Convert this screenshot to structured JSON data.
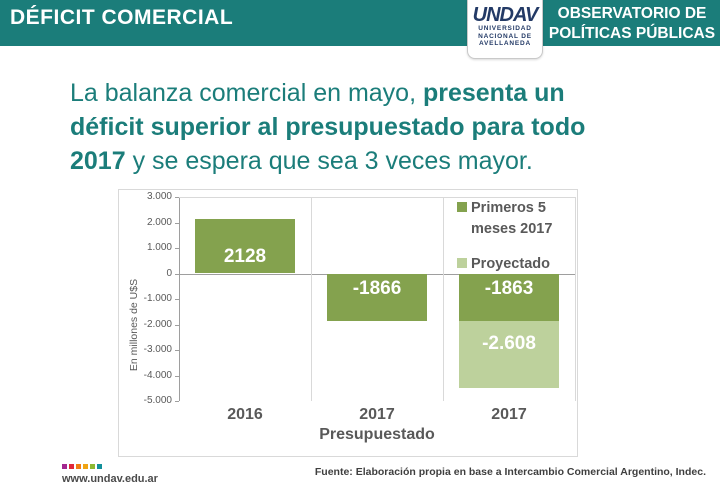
{
  "theme": {
    "teal": "#1b7d7a",
    "navy": "#233a66",
    "dark_green": "#84a24e",
    "light_green": "#bdd19c"
  },
  "header": {
    "title": "DÉFICIT COMERCIAL",
    "observatory_line1": "OBSERVATORIO DE",
    "observatory_line2": "POLÍTICAS PÚBLICAS",
    "logo": {
      "acronym": "UNDAV",
      "line1": "UNIVERSIDAD",
      "line2": "NACIONAL DE",
      "line3": "AVELLANEDA"
    }
  },
  "headline": {
    "lines": [
      [
        {
          "t": "La balanza comercial en mayo, ",
          "b": false
        },
        {
          "t": "presenta un",
          "b": true
        }
      ],
      [
        {
          "t": "déficit superior al presupuestado para todo",
          "b": true
        }
      ],
      [
        {
          "t": "2017",
          "b": true
        },
        {
          "t": " y se espera que sea 3 veces mayor.",
          "b": false
        }
      ]
    ]
  },
  "chart_data": {
    "type": "bar",
    "stacked": true,
    "title": "",
    "categories": [
      "2016",
      "2017 Presupuestado",
      "2017"
    ],
    "category_label_lines": [
      [
        "2016"
      ],
      [
        "2017",
        "Presupuestado"
      ],
      [
        "2017"
      ]
    ],
    "series": [
      {
        "name": "Primeros 5 meses 2017",
        "legend_label": "Primeros 5\nmeses 2017",
        "color": "#84a24e",
        "values": [
          2128,
          -1866,
          -1863
        ],
        "labels": [
          "2128",
          "-1866",
          "-1863"
        ]
      },
      {
        "name": "Proyectado",
        "legend_label": "Proyectado",
        "color": "#bdd19c",
        "values": [
          null,
          null,
          -2608
        ],
        "labels": [
          null,
          null,
          "-2.608"
        ]
      }
    ],
    "xlabel": "",
    "ylabel": "En millones de U$S",
    "ylim": [
      -5000,
      3000
    ],
    "ytick_step": 1000,
    "ytick_labels": [
      "3.000",
      "2.000",
      "1.000",
      "0",
      "-1.000",
      "-2.000",
      "-3.000",
      "-4.000",
      "-5.000"
    ],
    "grid": "category separators, zero axis",
    "legend_position": "top-right"
  },
  "footer": {
    "url": "www.undav.edu.ar",
    "source": "Fuente: Elaboración propia en base a Intercambio Comercial Argentino, Indec.",
    "dot_colors": [
      "#a3278f",
      "#e1273a",
      "#f07d13",
      "#f0a413",
      "#8db832",
      "#12909b"
    ]
  }
}
